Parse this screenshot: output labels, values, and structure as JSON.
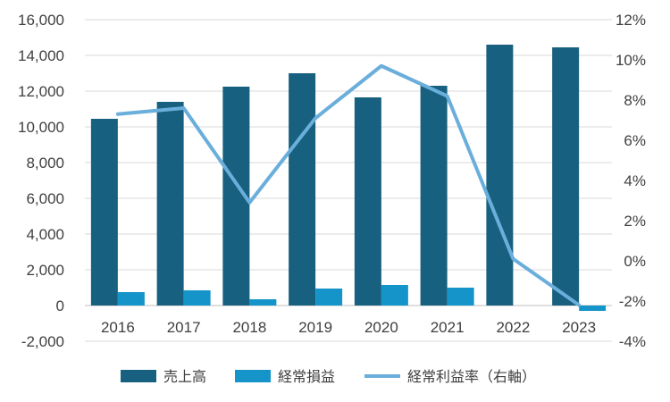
{
  "chart_data": {
    "type": "bar",
    "categories": [
      "2016",
      "2017",
      "2018",
      "2019",
      "2020",
      "2021",
      "2022",
      "2023"
    ],
    "series": [
      {
        "name": "売上高",
        "kind": "bar",
        "axis": "left",
        "color": "#17607f",
        "values": [
          10450,
          11400,
          12250,
          13000,
          11650,
          12300,
          14600,
          14450
        ]
      },
      {
        "name": "経常損益",
        "kind": "bar",
        "axis": "left",
        "color": "#1494c8",
        "values": [
          750,
          850,
          350,
          950,
          1150,
          1000,
          0,
          -300
        ]
      },
      {
        "name": "経常利益率（右軸）",
        "kind": "line",
        "axis": "right",
        "color": "#6aaedb",
        "values": [
          7.3,
          7.6,
          2.9,
          7.1,
          9.7,
          8.2,
          0.1,
          -2.2
        ]
      }
    ],
    "ylim": [
      -2000,
      16000
    ],
    "y_ticks": [
      "-2,000",
      "0",
      "2,000",
      "4,000",
      "6,000",
      "8,000",
      "10,000",
      "12,000",
      "14,000",
      "16,000"
    ],
    "y2lim": [
      -4,
      12
    ],
    "y2_ticks": [
      "-4%",
      "-2%",
      "0%",
      "2%",
      "4%",
      "6%",
      "8%",
      "10%",
      "12%"
    ],
    "grid": true,
    "legend_position": "bottom"
  }
}
